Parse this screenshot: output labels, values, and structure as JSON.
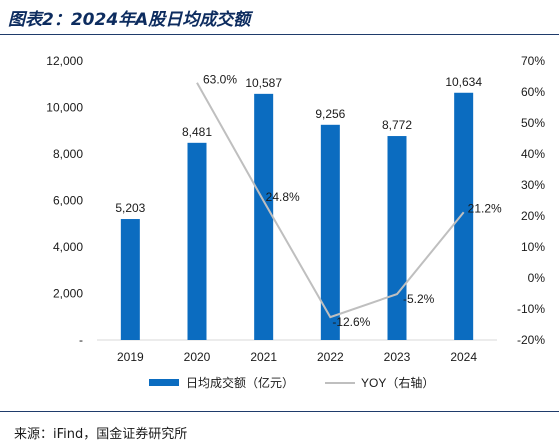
{
  "header": {
    "title": "图表2：2024年A股日均成交额"
  },
  "footer": {
    "source": "来源：iFind，国金证券研究所"
  },
  "chart_data": {
    "type": "bar",
    "categories": [
      "2019",
      "2020",
      "2021",
      "2022",
      "2023",
      "2024"
    ],
    "series": [
      {
        "name": "日均成交额（亿元）",
        "type": "bar",
        "axis": "left",
        "values": [
          5203,
          8481,
          10587,
          9256,
          8772,
          10634
        ],
        "labels": [
          "5,203",
          "8,481",
          "10,587",
          "9,256",
          "8,772",
          "10,634"
        ],
        "color": "#0b6cc0"
      },
      {
        "name": "YOY（右轴）",
        "type": "line",
        "axis": "right",
        "values": [
          null,
          63.0,
          24.8,
          -12.6,
          -5.2,
          21.2
        ],
        "labels": [
          "",
          "63.0%",
          "24.8%",
          "-12.6%",
          "-5.2%",
          "21.2%"
        ],
        "color": "#bfbfbf"
      }
    ],
    "y_left": {
      "ylim": [
        0,
        12000
      ],
      "ticks": [
        0,
        2000,
        4000,
        6000,
        8000,
        10000,
        12000
      ],
      "tick_labels": [
        "-",
        "2,000",
        "4,000",
        "6,000",
        "8,000",
        "10,000",
        "12,000"
      ]
    },
    "y_right": {
      "ylim": [
        -20,
        70
      ],
      "ticks": [
        -20,
        -10,
        0,
        10,
        20,
        30,
        40,
        50,
        60,
        70
      ],
      "tick_labels": [
        "-20%",
        "-10%",
        "0%",
        "10%",
        "20%",
        "30%",
        "40%",
        "50%",
        "60%",
        "70%"
      ]
    },
    "grid": false,
    "legend_position": "bottom"
  }
}
